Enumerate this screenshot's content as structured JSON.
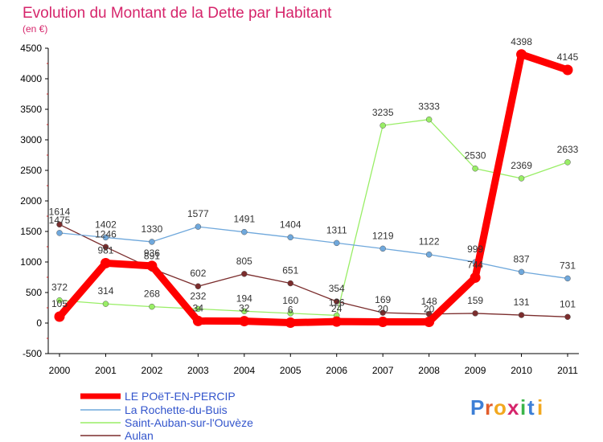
{
  "chart_data": {
    "type": "line",
    "title": "Evolution du Montant de la Dette par Habitant",
    "subtitle": "(en €)",
    "ylim": [
      -500,
      4500
    ],
    "yticks": [
      -500,
      0,
      500,
      1000,
      1500,
      2000,
      2500,
      3000,
      3500,
      4000,
      4500
    ],
    "categories": [
      "2000",
      "2001",
      "2002",
      "2003",
      "2004",
      "2005",
      "2006",
      "2007",
      "2008",
      "2009",
      "2010",
      "2011"
    ],
    "grid": false,
    "legend_position": "bottom-left",
    "series": [
      {
        "name": "LE POëT-EN-PERCIP",
        "color": "#ff0000",
        "values": [
          105,
          981,
          936,
          34,
          32,
          6,
          24,
          20,
          20,
          744,
          4398,
          4145
        ],
        "labels": [
          "105",
          "981",
          "936",
          "34",
          "32",
          "6",
          "24",
          "20",
          "20",
          "744",
          "4398",
          "4145"
        ]
      },
      {
        "name": "La Rochette-du-Buis",
        "color": "#6fa8dc",
        "values": [
          1475,
          1402,
          1330,
          1577,
          1491,
          1404,
          1311,
          1219,
          1122,
          999,
          837,
          731
        ],
        "labels": [
          "1475",
          "1402",
          "1330",
          "1577",
          "1491",
          "1404",
          "1311",
          "1219",
          "1122",
          "999",
          "837",
          "731"
        ]
      },
      {
        "name": "Saint-Auban-sur-l'Ouvèze",
        "color": "#99ee66",
        "values": [
          372,
          314,
          268,
          232,
          194,
          160,
          126,
          3235,
          3333,
          2530,
          2369,
          2633
        ],
        "labels": [
          "372",
          "314",
          "268",
          "232",
          "194",
          "160",
          "126",
          "3235",
          "3333",
          "2530",
          "2369",
          "2633"
        ]
      },
      {
        "name": "Aulan",
        "color": "#7b2d2d",
        "values": [
          1614,
          1246,
          891,
          602,
          805,
          651,
          354,
          169,
          148,
          159,
          131,
          101
        ],
        "labels": [
          "1614",
          "1246",
          "891",
          "602",
          "805",
          "651",
          "354",
          "169",
          "148",
          "159",
          "131",
          "101"
        ]
      }
    ]
  },
  "branding": {
    "logo_text": "Proxiti"
  },
  "colors": {
    "title": "#d6256b",
    "axis": "#000000",
    "background": "#ffffff"
  }
}
